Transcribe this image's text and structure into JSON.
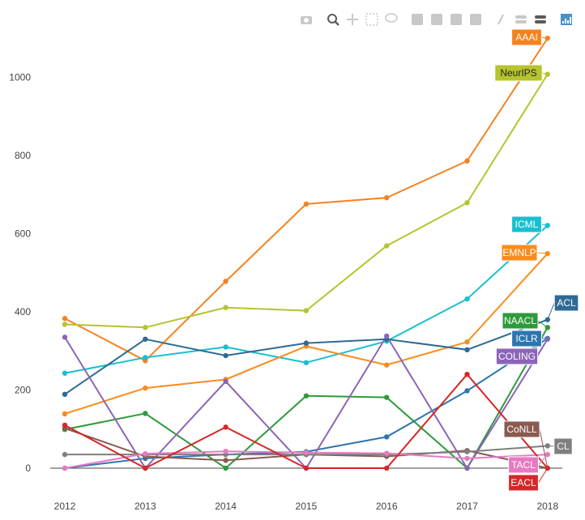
{
  "toolbar": {
    "icons": [
      "camera-icon",
      "zoom-icon",
      "pan-icon",
      "box-select-icon",
      "lasso-icon",
      "zoom-in-icon",
      "zoom-out-icon",
      "autoscale-icon",
      "reset-axes-icon",
      "spike-lines-icon",
      "hover-closest-icon",
      "hover-compare-icon",
      "plotly-logo-icon"
    ]
  },
  "chart_data": {
    "type": "line",
    "title": "",
    "xlabel": "",
    "ylabel": "",
    "x": [
      2012,
      2013,
      2014,
      2015,
      2016,
      2017,
      2018
    ],
    "x_tick_labels": [
      "2012",
      "2013",
      "2014",
      "2015",
      "2016",
      "2017",
      "2018"
    ],
    "y_ticks": [
      0,
      200,
      400,
      600,
      800,
      1000
    ],
    "y_tick_labels": [
      "0",
      "200",
      "400",
      "600",
      "800",
      "1000"
    ],
    "xlim": [
      2011.85,
      2018.15
    ],
    "ylim": [
      -30,
      1150
    ],
    "grid": false,
    "legend": "labels at line ends",
    "series": [
      {
        "name": "AAAI",
        "color": "#f5821f",
        "values": [
          383,
          275,
          478,
          676,
          692,
          786,
          1100
        ]
      },
      {
        "name": "NeurIPS",
        "color": "#b5c42f",
        "values": [
          368,
          360,
          411,
          403,
          569,
          679,
          1008
        ]
      },
      {
        "name": "ICML",
        "color": "#19bfd1",
        "values": [
          243,
          283,
          310,
          270,
          325,
          433,
          621
        ]
      },
      {
        "name": "EMNLP",
        "color": "#fa8c1e",
        "values": [
          139,
          205,
          227,
          312,
          264,
          323,
          549
        ]
      },
      {
        "name": "ACL",
        "color": "#2e6a94",
        "values": [
          189,
          330,
          288,
          320,
          330,
          303,
          380
        ]
      },
      {
        "name": "NAACL",
        "color": "#2e9a3b",
        "values": [
          99,
          140,
          0,
          185,
          181,
          0,
          360
        ]
      },
      {
        "name": "ICLR",
        "color": "#2c75b0",
        "values": [
          0,
          25,
          35,
          42,
          80,
          198,
          332
        ]
      },
      {
        "name": "COLING",
        "color": "#8c64b8",
        "values": [
          335,
          0,
          222,
          0,
          338,
          0,
          330
        ]
      },
      {
        "name": "CoNLL",
        "color": "#8a5a4f",
        "values": [
          102,
          30,
          20,
          35,
          30,
          45,
          0
        ]
      },
      {
        "name": "CL",
        "color": "#7f7f7f",
        "values": [
          35,
          35,
          35,
          35,
          35,
          42,
          57
        ]
      },
      {
        "name": "TACL",
        "color": "#e67ac2",
        "values": [
          0,
          37,
          43,
          40,
          38,
          25,
          35
        ]
      },
      {
        "name": "EACL",
        "color": "#d62728",
        "values": [
          110,
          0,
          105,
          0,
          0,
          240,
          0
        ]
      }
    ]
  }
}
